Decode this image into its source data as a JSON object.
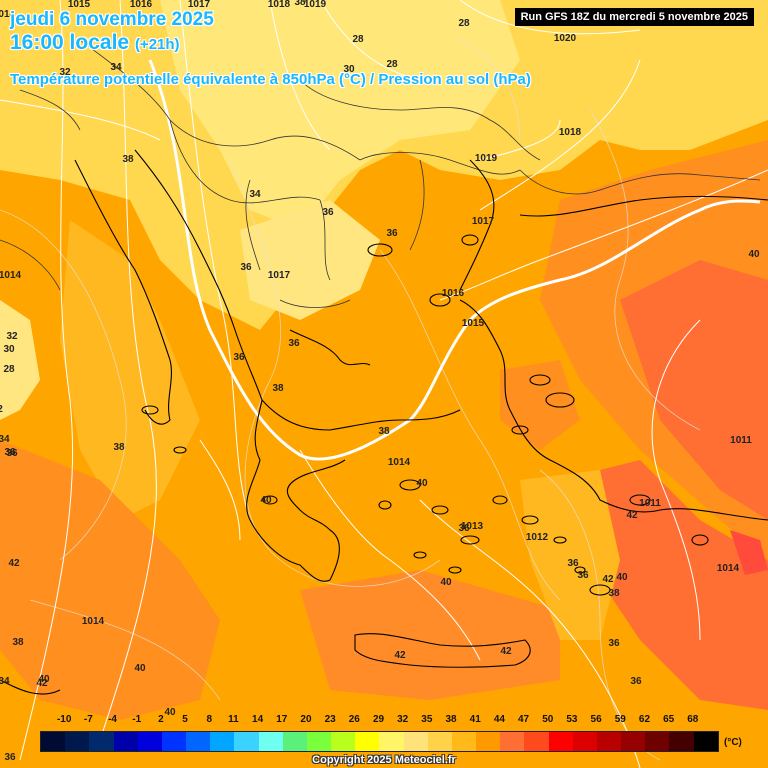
{
  "title": {
    "date": "jeudi 6 novembre 2025",
    "time": "16:00 locale",
    "step": "(+21h)",
    "parameter": "Température potentielle équivalente à 850hPa (°C) / Pression au sol (hPa)"
  },
  "run_info": "Run GFS 18Z du mercredi 5 novembre 2025",
  "legend": {
    "unit": "(°C)",
    "ticks": [
      "-10",
      "-7",
      "-4",
      "-1",
      "2",
      "5",
      "8",
      "11",
      "14",
      "17",
      "20",
      "23",
      "26",
      "29",
      "32",
      "35",
      "38",
      "41",
      "44",
      "47",
      "50",
      "53",
      "56",
      "59",
      "62",
      "65",
      "68"
    ],
    "colors": [
      "#000a33",
      "#00194d",
      "#00296e",
      "#0000aa",
      "#0000dd",
      "#0033ff",
      "#0066ff",
      "#00a6ff",
      "#3cd2ff",
      "#6ffff0",
      "#5af07a",
      "#7aff3c",
      "#b8ff1e",
      "#ffff00",
      "#fff566",
      "#ffe27a",
      "#ffd24a",
      "#ffba1a",
      "#ff9900",
      "#ff6e32",
      "#ff4a1e",
      "#ff0000",
      "#dd0000",
      "#b80000",
      "#960000",
      "#6e0000",
      "#440000",
      "#000000"
    ]
  },
  "copyright": "Copyright 2025 Meteociel.fr",
  "temperature_labels": [
    "28",
    "28",
    "30",
    "28",
    "38",
    "34",
    "34",
    "36",
    "36",
    "1017",
    "36",
    "36",
    "36",
    "38",
    "38",
    "38",
    "40",
    "40",
    "40",
    "42",
    "40",
    "42",
    "40",
    "36",
    "36",
    "38",
    "36",
    "36",
    "36",
    "40",
    "42",
    "42",
    "42",
    "38",
    "40",
    "36",
    "34",
    "36",
    "32",
    "30",
    "28",
    "2",
    "42",
    "34",
    "32",
    "38",
    "36",
    "40"
  ],
  "pressure_labels": [
    "1015",
    "1016",
    "1017",
    "1018",
    "1019",
    "1020",
    "1018",
    "1019",
    "1017",
    "1016",
    "1015",
    "1014",
    "1013",
    "1012",
    "1011",
    "1011",
    "1014",
    "1014",
    "1014",
    "1014"
  ],
  "colors": {
    "title": "#19b7ff",
    "isobar": "#ffffff",
    "coast": "#000000",
    "border": "#333333"
  }
}
